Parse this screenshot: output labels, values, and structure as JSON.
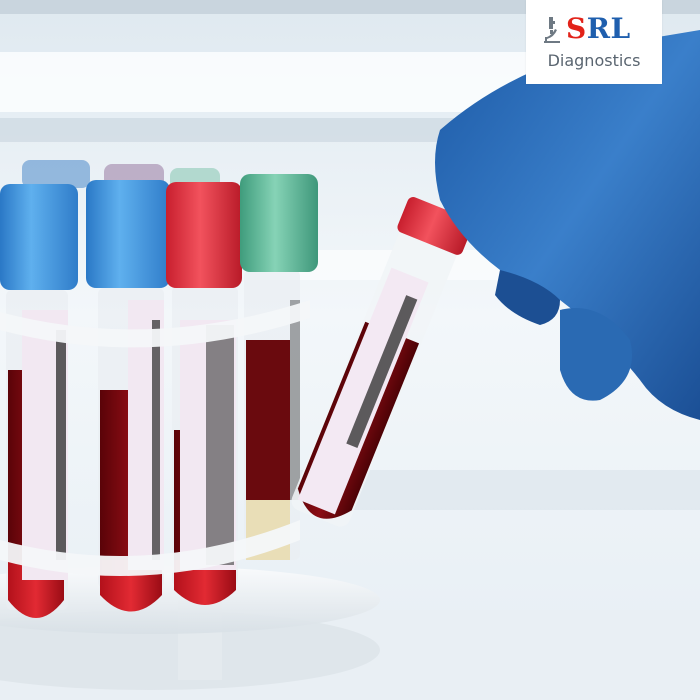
{
  "logo": {
    "brand_s": "S",
    "brand_rl": "RL",
    "tagline": "Diagnostics",
    "icon": "microscope-icon",
    "colors": {
      "s": "#e2231a",
      "rl": "#1f5fae",
      "tagline": "#5a6570"
    }
  },
  "scene": {
    "tubes": [
      {
        "cap_color": "#3a8fd6"
      },
      {
        "cap_color": "#3a8fd6"
      },
      {
        "cap_color": "#e33a4a"
      },
      {
        "cap_color": "#5fb797"
      }
    ],
    "held_tube_cap_color": "#e5323f",
    "glove_color": "#2c6db6",
    "blood_color": "#7a0a10"
  }
}
